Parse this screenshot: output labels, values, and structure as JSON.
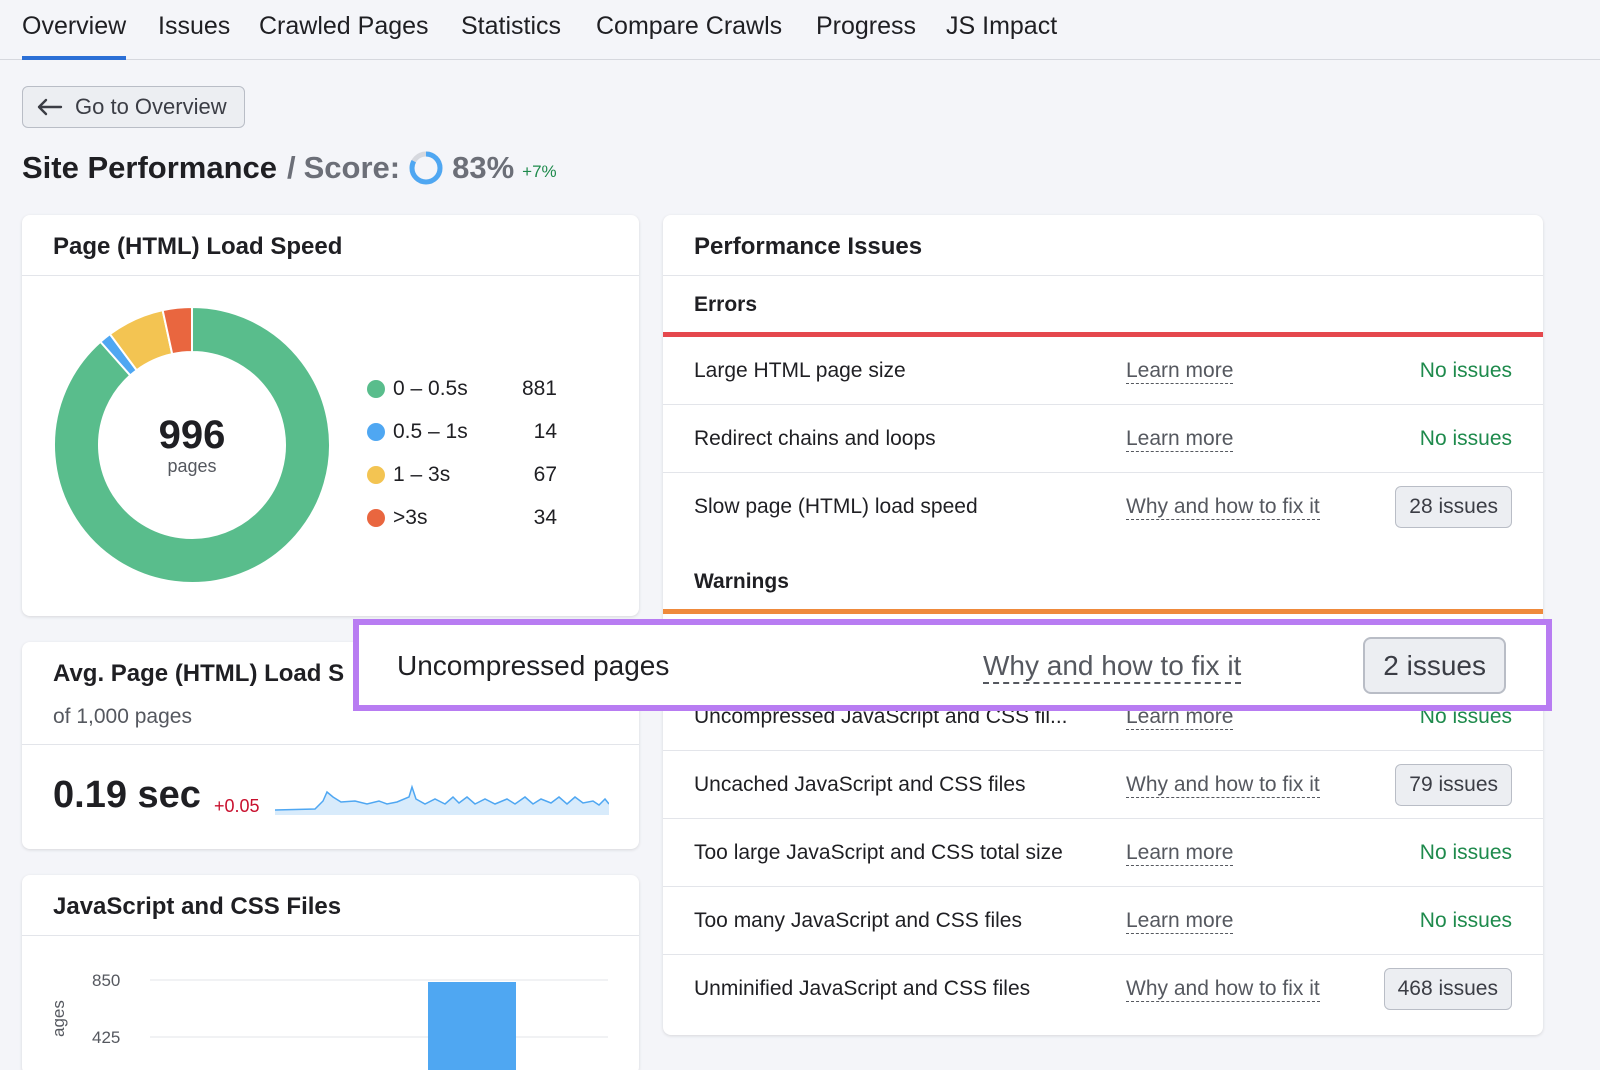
{
  "tabs": [
    "Overview",
    "Issues",
    "Crawled Pages",
    "Statistics",
    "Compare Crawls",
    "Progress",
    "JS Impact"
  ],
  "back_button": "Go to Overview",
  "header": {
    "title": "Site Performance",
    "slash": "/",
    "score_label": "Score:",
    "score": "83%",
    "score_value": 0.83,
    "delta": "+7%"
  },
  "load_speed": {
    "title": "Page (HTML) Load Speed",
    "total": "996",
    "total_label": "pages",
    "legend": [
      {
        "label": "0 – 0.5s",
        "value": "881",
        "count": 881,
        "color": "#59bd8c"
      },
      {
        "label": "0.5 – 1s",
        "value": "14",
        "count": 14,
        "color": "#4fa7f2"
      },
      {
        "label": "1 – 3s",
        "value": "67",
        "count": 67,
        "color": "#f3c452"
      },
      {
        "label": ">3s",
        "value": "34",
        "count": 34,
        "color": "#e9663f"
      }
    ]
  },
  "avg_load": {
    "title": "Avg. Page (HTML) Load S",
    "subtitle": "of 1,000 pages",
    "value": "0.19 sec",
    "change": "+0.05"
  },
  "js_files": {
    "title": "JavaScript and CSS Files",
    "ticks": [
      "850",
      "425"
    ],
    "ylabel": "ages"
  },
  "performance": {
    "title": "Performance Issues",
    "errors_label": "Errors",
    "warnings_label": "Warnings",
    "errors": [
      {
        "name": "Large HTML page size",
        "link": "Learn more",
        "status": "No issues"
      },
      {
        "name": "Redirect chains and loops",
        "link": "Learn more",
        "status": "No issues"
      },
      {
        "name": "Slow page (HTML) load speed",
        "link": "Why and how to fix it",
        "badge": "28 issues"
      }
    ],
    "warnings": [
      {
        "name": "Uncompressed JavaScript and CSS fil...",
        "link": "Learn more",
        "status": "No issues"
      },
      {
        "name": "Uncached JavaScript and CSS files",
        "link": "Why and how to fix it",
        "badge": "79 issues"
      },
      {
        "name": "Too large JavaScript and CSS total size",
        "link": "Learn more",
        "status": "No issues"
      },
      {
        "name": "Too many JavaScript and CSS files",
        "link": "Learn more",
        "status": "No issues"
      },
      {
        "name": "Unminified JavaScript and CSS files",
        "link": "Why and how to fix it",
        "badge": "468 issues"
      }
    ]
  },
  "highlight": {
    "name": "Uncompressed pages",
    "link": "Why and how to fix it",
    "badge": "2 issues"
  },
  "colors": {
    "accent": "#2b6fd6",
    "error": "#e5484d",
    "warning": "#ef8a3c",
    "highlight": "#b87cf2",
    "success": "#1e8a4c"
  }
}
